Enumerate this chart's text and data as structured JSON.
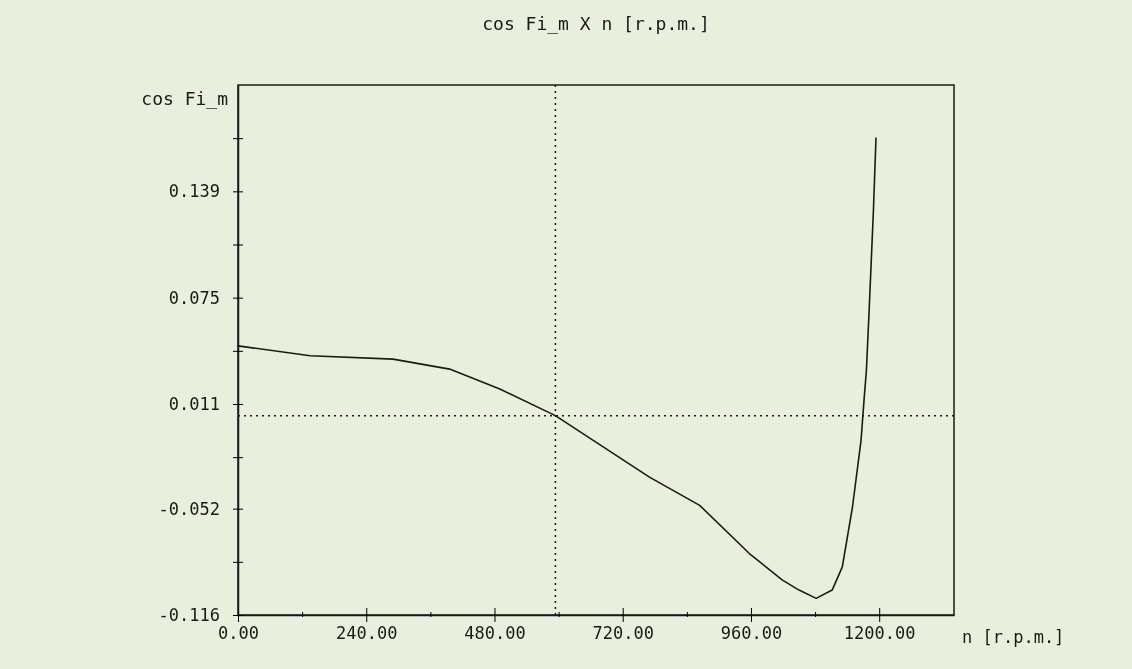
{
  "chart_data": {
    "type": "line",
    "title": "cos Fi_m  X  n [r.p.m.]",
    "ylabel": "cos Fi_m",
    "xlabel": "n [r.p.m.]",
    "x": [
      0,
      135,
      290,
      396,
      490,
      594,
      770,
      864,
      957,
      1019,
      1050,
      1082,
      1112,
      1131,
      1150,
      1166,
      1172,
      1176,
      1181,
      1189,
      1194
    ],
    "series": [
      {
        "color": "#1a1a1a",
        "values": [
          0.046,
          0.04,
          0.038,
          0.032,
          0.02,
          0.004,
          -0.033,
          -0.05,
          -0.079,
          -0.095,
          -0.101,
          -0.106,
          -0.101,
          -0.087,
          -0.051,
          -0.011,
          0.015,
          0.031,
          0.066,
          0.126,
          0.171
        ]
      }
    ],
    "xlim": [
      0,
      1340
    ],
    "xticks": [
      {
        "value": 0,
        "label": "0.00"
      },
      {
        "value": 120,
        "label": null
      },
      {
        "value": 240,
        "label": "240.00"
      },
      {
        "value": 360,
        "label": null
      },
      {
        "value": 480,
        "label": "480.00"
      },
      {
        "value": 600,
        "label": null
      },
      {
        "value": 720,
        "label": "720.00"
      },
      {
        "value": 840,
        "label": null
      },
      {
        "value": 960,
        "label": "960.00"
      },
      {
        "value": 1080,
        "label": null
      },
      {
        "value": 1200,
        "label": "1200.00"
      }
    ],
    "ylim": [
      -0.116,
      0.203
    ],
    "yticks": [
      -0.116,
      {
        "value": -0.084,
        "label": null
      },
      -0.052,
      {
        "value": -0.021,
        "label": null
      },
      0.011,
      {
        "value": 0.043,
        "label": null
      },
      0.075,
      {
        "value": 0.107,
        "label": null
      },
      0.139,
      {
        "value": 0.171,
        "label": null
      }
    ],
    "ref_lines": [
      {
        "axis": "x",
        "value": 594,
        "line_style": "dotted"
      },
      {
        "axis": "y",
        "value": 0.004,
        "line_style": "dotted"
      }
    ],
    "marker": "none",
    "line_style": "solid"
  }
}
